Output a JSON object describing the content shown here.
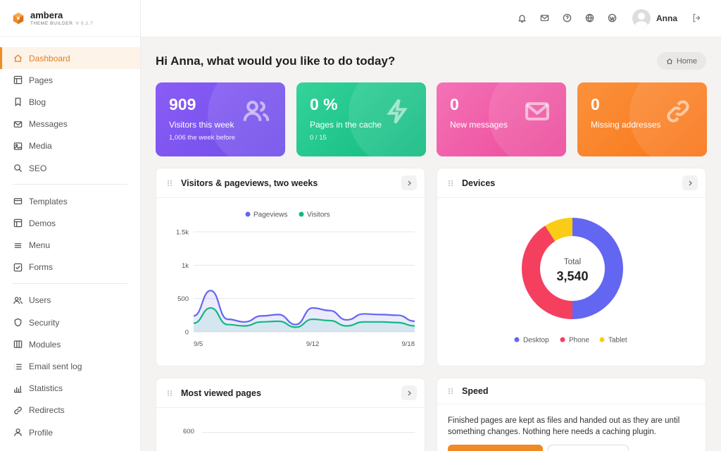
{
  "brand": {
    "name": "ambera",
    "subtitle": "THEME BUILDER",
    "version": "V 0.2.7"
  },
  "sidebar": {
    "group1": [
      {
        "label": "Dashboard",
        "icon": "home-icon",
        "active": true
      },
      {
        "label": "Pages",
        "icon": "layout-icon"
      },
      {
        "label": "Blog",
        "icon": "bookmark-icon"
      },
      {
        "label": "Messages",
        "icon": "mail-icon"
      },
      {
        "label": "Media",
        "icon": "image-icon"
      },
      {
        "label": "SEO",
        "icon": "search-icon"
      }
    ],
    "group2": [
      {
        "label": "Templates",
        "icon": "card-icon"
      },
      {
        "label": "Demos",
        "icon": "layout-icon"
      },
      {
        "label": "Menu",
        "icon": "menu-icon"
      },
      {
        "label": "Forms",
        "icon": "check-square-icon"
      }
    ],
    "group3": [
      {
        "label": "Users",
        "icon": "users-icon"
      },
      {
        "label": "Security",
        "icon": "shield-icon"
      },
      {
        "label": "Modules",
        "icon": "columns-icon"
      },
      {
        "label": "Email sent log",
        "icon": "list-icon"
      },
      {
        "label": "Statistics",
        "icon": "bar-chart-icon"
      },
      {
        "label": "Redirects",
        "icon": "link-icon"
      },
      {
        "label": "Profile",
        "icon": "user-icon"
      }
    ]
  },
  "topbar": {
    "icons": [
      "bell-icon",
      "mail-icon",
      "help-icon",
      "globe-icon",
      "wordpress-icon"
    ],
    "user_name": "Anna"
  },
  "main": {
    "greeting": "Hi Anna, what would you like to do today?",
    "home_label": "Home"
  },
  "stats": [
    {
      "value": "909",
      "label": "Visitors this week",
      "sub": "1,006 the week before",
      "color_from": "#8b5cf6",
      "color_to": "#6d4de8",
      "icon": "users-icon"
    },
    {
      "value": "0 %",
      "label": "Pages in the cache",
      "sub": "0 / 15",
      "color_from": "#34d399",
      "color_to": "#10b981",
      "icon": "bolt-icon"
    },
    {
      "value": "0",
      "label": "New messages",
      "sub": "",
      "color_from": "#f472b6",
      "color_to": "#ec4899",
      "icon": "mail-icon"
    },
    {
      "value": "0",
      "label": "Missing addresses",
      "sub": "",
      "color_from": "#fb923c",
      "color_to": "#f97316",
      "icon": "link-icon"
    }
  ],
  "visitors_card": {
    "title": "Visitors & pageviews, two weeks",
    "chart_data": {
      "type": "area",
      "x": [
        "9/5",
        "9/6",
        "9/7",
        "9/8",
        "9/9",
        "9/10",
        "9/11",
        "9/12",
        "9/13",
        "9/14",
        "9/15",
        "9/16",
        "9/17",
        "9/18"
      ],
      "x_tick_labels": [
        "9/5",
        "9/12",
        "9/18"
      ],
      "y_tick_labels": [
        "0",
        "500",
        "1k",
        "1.5k"
      ],
      "ylim": [
        0,
        1500
      ],
      "series": [
        {
          "name": "Pageviews",
          "color": "#6366f1",
          "values": [
            240,
            620,
            190,
            150,
            240,
            260,
            110,
            360,
            320,
            180,
            270,
            260,
            250,
            160
          ]
        },
        {
          "name": "Visitors",
          "color": "#10b981",
          "values": [
            130,
            360,
            110,
            90,
            150,
            160,
            70,
            190,
            170,
            90,
            150,
            150,
            140,
            90
          ]
        }
      ],
      "legend": "top"
    }
  },
  "devices_card": {
    "title": "Devices",
    "total_label": "Total",
    "total_value": "3,540",
    "chart_data": {
      "type": "pie",
      "labels": [
        "Desktop",
        "Phone",
        "Tablet"
      ],
      "colors": [
        "#6366f1",
        "#f43f5e",
        "#facc15"
      ],
      "values": [
        1770,
        1450,
        320
      ]
    }
  },
  "most_viewed_card": {
    "title": "Most viewed pages",
    "y_tick_label": "600"
  },
  "speed_card": {
    "title": "Speed",
    "text": "Finished pages are kept as files and handed out as they are until something changes. Nothing here needs a caching plugin."
  }
}
